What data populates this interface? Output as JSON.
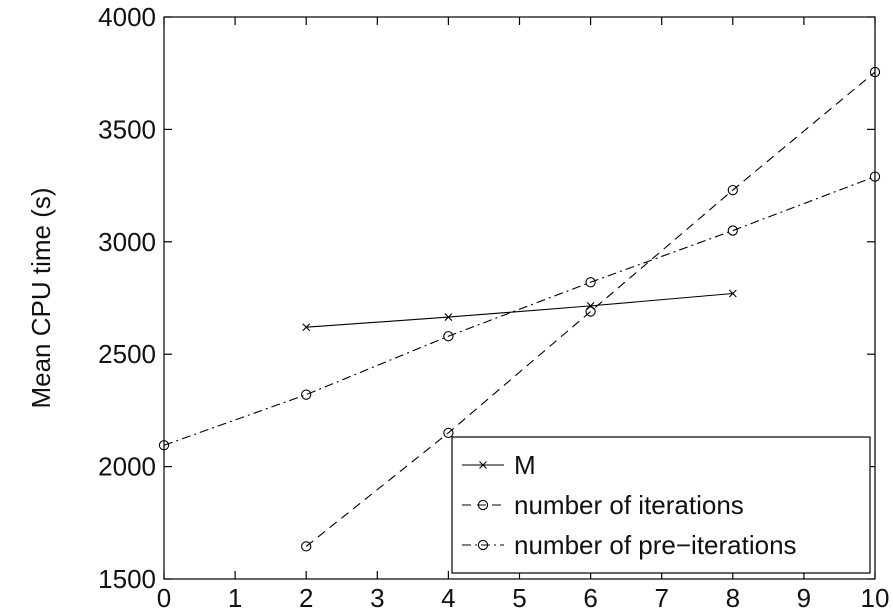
{
  "chart_data": {
    "type": "line",
    "title": "",
    "xlabel": "",
    "ylabel": "Mean CPU time (s)",
    "xlim": [
      0,
      10
    ],
    "ylim": [
      1500,
      4000
    ],
    "xticks": [
      0,
      1,
      2,
      3,
      4,
      5,
      6,
      7,
      8,
      9,
      10
    ],
    "yticks": [
      1500,
      2000,
      2500,
      3000,
      3500,
      4000
    ],
    "grid": false,
    "legend_position": "bottom-right",
    "series": [
      {
        "name": "M",
        "line_style": "solid",
        "marker": "x",
        "color": "#000000",
        "x": [
          2,
          4,
          6,
          8
        ],
        "y": [
          2620,
          2665,
          2715,
          2770
        ]
      },
      {
        "name": "number of iterations",
        "line_style": "dashed",
        "marker": "circle",
        "color": "#000000",
        "x": [
          2,
          4,
          6,
          8,
          10
        ],
        "y": [
          1645,
          2150,
          2690,
          3230,
          3755
        ]
      },
      {
        "name": "number of pre−iterations",
        "line_style": "dashdot",
        "marker": "circle",
        "color": "#000000",
        "x": [
          0,
          2,
          4,
          6,
          8,
          10
        ],
        "y": [
          2095,
          2320,
          2580,
          2820,
          3050,
          3290
        ]
      }
    ]
  }
}
